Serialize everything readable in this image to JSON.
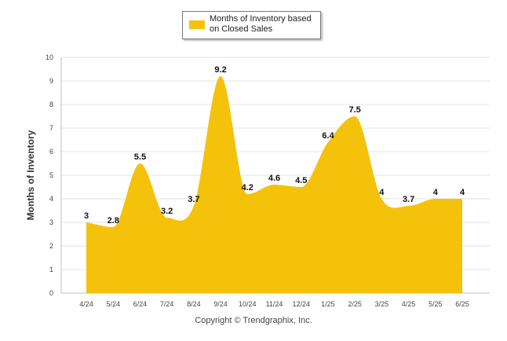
{
  "chart_data": {
    "type": "area",
    "categories": [
      "4/24",
      "5/24",
      "6/24",
      "7/24",
      "8/24",
      "9/24",
      "10/24",
      "11/24",
      "12/24",
      "1/25",
      "2/25",
      "3/25",
      "4/25",
      "5/25",
      "6/25"
    ],
    "series": [
      {
        "name": "Months of Inventory based on Closed Sales",
        "values": [
          3,
          2.8,
          5.5,
          3.2,
          3.7,
          9.2,
          4.2,
          4.6,
          4.5,
          6.4,
          7.5,
          4,
          3.7,
          4,
          4
        ],
        "data_labels": [
          "3",
          "2.8",
          "5.5",
          "3.2",
          "3.7",
          "9.2",
          "4.2",
          "4.6",
          "4.5",
          "6.4",
          "7.5",
          "4",
          "3.7",
          "4",
          "4"
        ],
        "color": "#f5c20b"
      }
    ],
    "ylabel": "Months of Inventory",
    "xlabel": "",
    "ylim": [
      0,
      10
    ],
    "yticks": [
      "0",
      "1",
      "2",
      "3",
      "4",
      "5",
      "6",
      "7",
      "8",
      "9",
      "10"
    ],
    "grid": true,
    "legend_position": "top-center"
  },
  "legend": {
    "label": "Months of Inventory based on Closed Sales"
  },
  "footer": {
    "copyright": "Copyright © Trendgraphix, Inc."
  }
}
